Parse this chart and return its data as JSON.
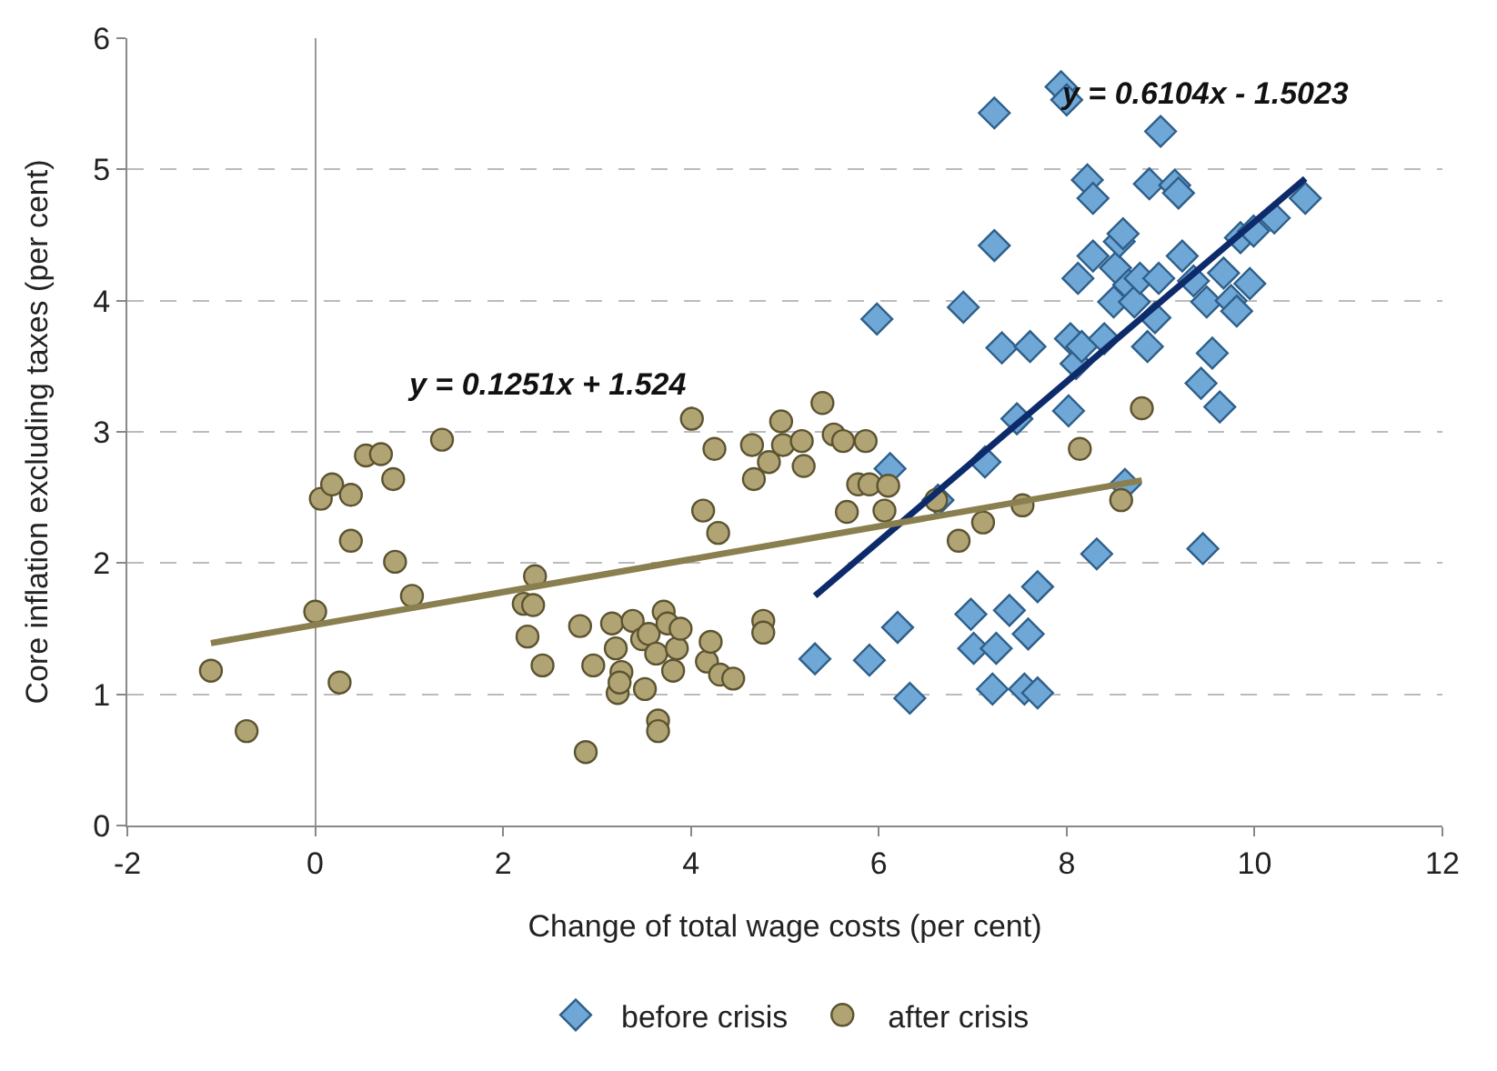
{
  "chart_data": {
    "type": "scatter",
    "xlabel": "Change of total wage costs (per cent)",
    "ylabel": "Core inflation excluding taxes (per cent)",
    "xlim": [
      -2,
      12
    ],
    "xticks": [
      -2,
      0,
      2,
      4,
      6,
      8,
      10,
      12
    ],
    "ylim": [
      0,
      6
    ],
    "yticks": [
      0,
      1,
      2,
      3,
      4,
      5,
      6
    ],
    "grid": "y",
    "legend": "bottom",
    "annotations": [
      "y = 0.6104x - 1.5023",
      "y = 0.1251x + 1.524"
    ],
    "series": [
      {
        "name": "before crisis",
        "type": "scatter",
        "marker": "diamond",
        "color": "#6fa8d6",
        "x": [
          5.32,
          5.9,
          5.98,
          6.12,
          6.2,
          6.33,
          6.63,
          6.9,
          6.98,
          7.01,
          7.13,
          7.21,
          7.23,
          7.23,
          7.25,
          7.31,
          7.39,
          7.47,
          7.55,
          7.59,
          7.61,
          7.69,
          7.69,
          7.94,
          8.0,
          8.04,
          8.02,
          8.1,
          8.16,
          8.12,
          8.22,
          8.28,
          8.32,
          8.28,
          8.4,
          8.5,
          8.52,
          8.56,
          8.6,
          8.62,
          8.66,
          8.72,
          8.78,
          8.86,
          8.94,
          8.88,
          9.0,
          8.98,
          9.15,
          9.19,
          9.23,
          9.35,
          9.43,
          9.49,
          9.45,
          9.55,
          9.63,
          9.67,
          9.75,
          9.81,
          9.85,
          9.95,
          9.99,
          10.21,
          10.54
        ],
        "values": [
          1.27,
          1.26,
          3.86,
          2.72,
          1.51,
          0.97,
          2.48,
          3.95,
          1.61,
          1.35,
          2.77,
          1.04,
          5.43,
          4.42,
          1.35,
          3.64,
          1.64,
          3.1,
          1.04,
          1.46,
          3.65,
          1.01,
          1.82,
          5.63,
          5.53,
          3.71,
          3.16,
          3.52,
          3.65,
          4.17,
          4.92,
          4.78,
          2.07,
          4.34,
          3.71,
          3.99,
          4.25,
          4.45,
          4.51,
          2.6,
          4.12,
          3.99,
          4.17,
          3.65,
          3.87,
          4.89,
          5.29,
          4.17,
          4.88,
          4.82,
          4.34,
          4.15,
          3.37,
          3.99,
          2.11,
          3.6,
          3.19,
          4.21,
          4.0,
          3.92,
          4.48,
          4.13,
          4.53,
          4.63,
          4.78
        ]
      },
      {
        "name": "after crisis",
        "type": "scatter",
        "marker": "circle",
        "color": "#b0a374",
        "x": [
          -1.11,
          -0.73,
          0,
          0.06,
          0.18,
          0.26,
          0.38,
          0.38,
          0.54,
          0.7,
          0.83,
          0.85,
          1.03,
          1.35,
          2.22,
          2.34,
          2.32,
          2.26,
          2.42,
          2.82,
          2.88,
          2.96,
          3.16,
          3.2,
          3.26,
          3.22,
          3.24,
          3.38,
          3.48,
          3.51,
          3.55,
          3.63,
          3.65,
          3.65,
          3.71,
          3.75,
          3.85,
          3.89,
          3.81,
          4.01,
          4.13,
          4.17,
          4.21,
          4.25,
          4.29,
          4.31,
          4.45,
          4.65,
          4.67,
          4.77,
          4.77,
          4.83,
          4.96,
          4.98,
          5.18,
          5.2,
          5.4,
          5.52,
          5.62,
          5.66,
          5.78,
          5.86,
          5.9,
          6.06,
          6.1,
          6.61,
          6.85,
          7.11,
          7.53,
          8.14,
          8.8,
          8.58
        ],
        "values": [
          1.18,
          0.72,
          1.63,
          2.49,
          2.6,
          1.09,
          2.52,
          2.17,
          2.82,
          2.83,
          2.64,
          2.01,
          1.75,
          2.94,
          1.69,
          1.9,
          1.68,
          1.44,
          1.22,
          1.52,
          0.56,
          1.22,
          1.54,
          1.35,
          1.17,
          1.01,
          1.09,
          1.56,
          1.42,
          1.04,
          1.46,
          1.31,
          0.8,
          0.72,
          1.63,
          1.54,
          1.35,
          1.5,
          1.18,
          3.1,
          2.4,
          1.25,
          1.4,
          2.87,
          2.23,
          1.15,
          1.12,
          2.9,
          2.64,
          1.56,
          1.47,
          2.77,
          3.08,
          2.9,
          2.93,
          2.74,
          3.22,
          2.98,
          2.93,
          2.39,
          2.6,
          2.93,
          2.6,
          2.4,
          2.59,
          2.48,
          2.17,
          2.31,
          2.44,
          2.87,
          3.18,
          2.48
        ]
      },
      {
        "type": "line",
        "color": "#0d2b6b",
        "x": [
          5.32,
          10.54
        ],
        "values": [
          1.75,
          4.93
        ]
      },
      {
        "type": "line",
        "color": "#8a7f4e",
        "x": [
          -1.11,
          8.8
        ],
        "values": [
          1.39,
          2.63
        ]
      }
    ]
  }
}
